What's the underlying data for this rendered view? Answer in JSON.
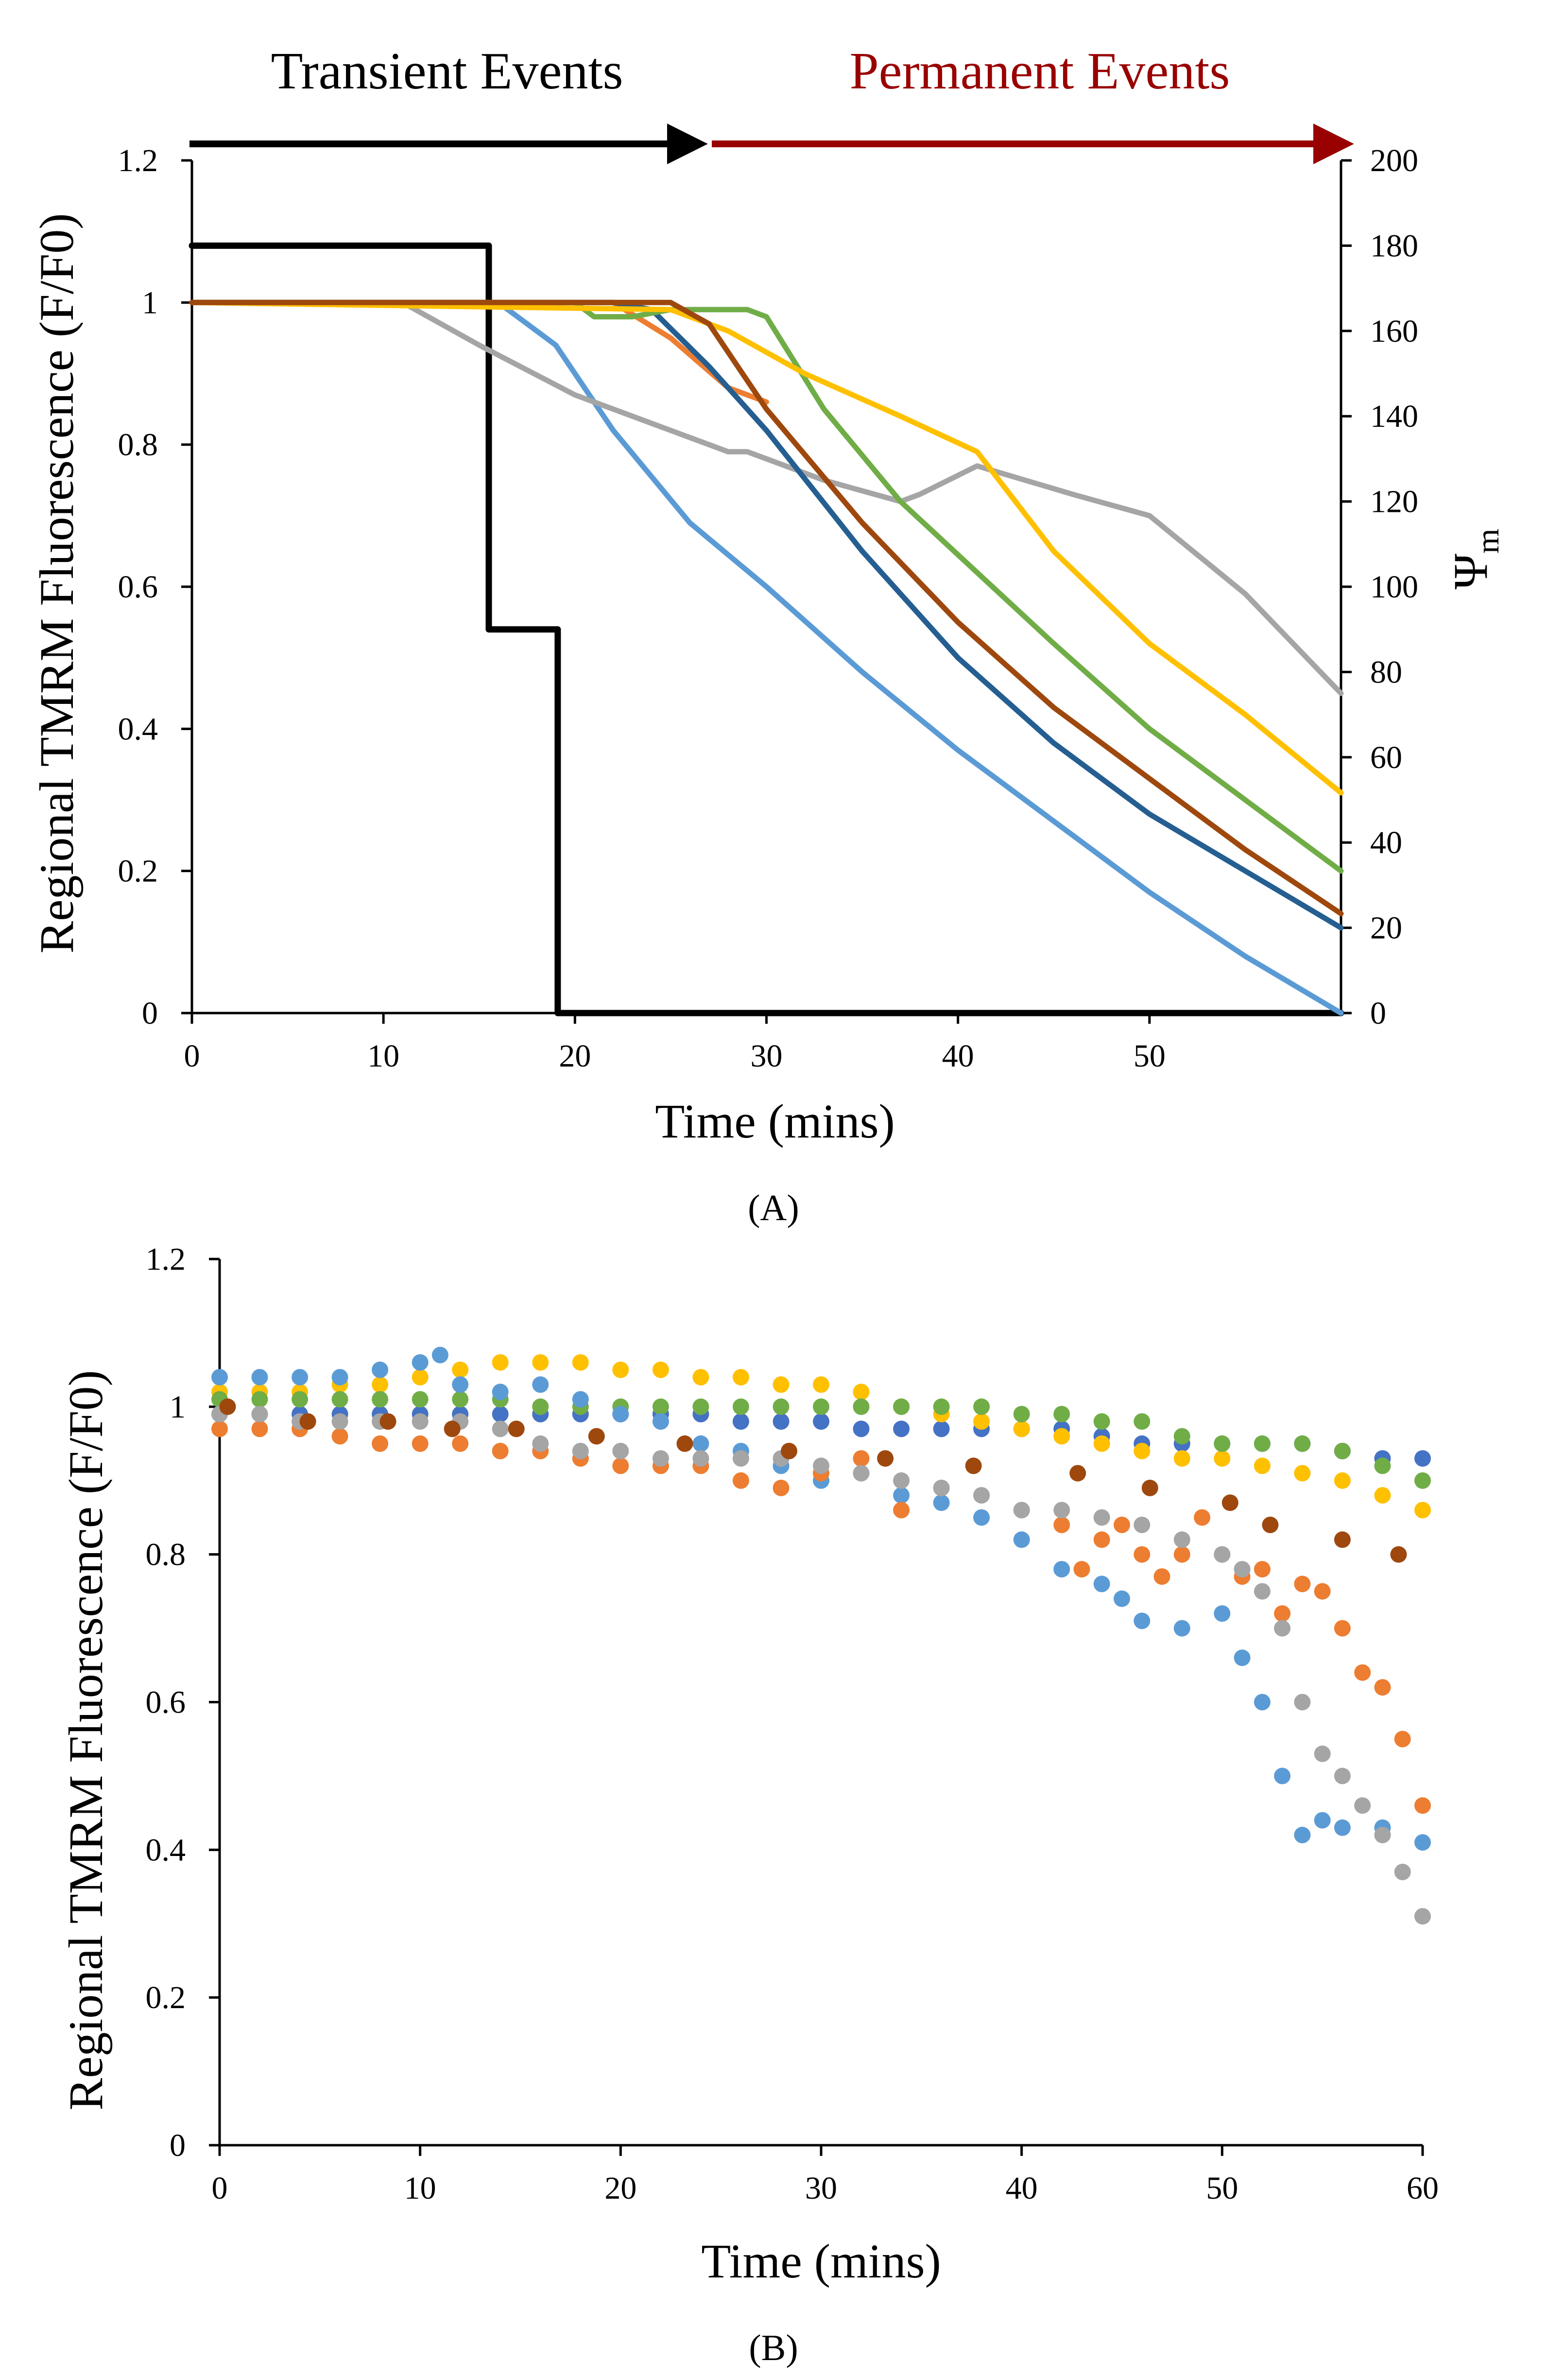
{
  "figure": {
    "panel_a_label": "(A)",
    "panel_b_label": "(B)",
    "events": {
      "transient_label": "Transient Events",
      "permanent_label": "Permanent Events",
      "transient_color": "#000000",
      "permanent_color": "#990000"
    }
  },
  "chart_data": [
    {
      "id": "A",
      "type": "line",
      "title": "",
      "xlabel": "Time (mins)",
      "ylabel": "Regional TMRM Fluorescence (F/F0)",
      "y2label": "Ψ",
      "y2label_subscript": "m",
      "xlim": [
        0,
        60
      ],
      "ylim": [
        0,
        1.2
      ],
      "y2lim": [
        0,
        200
      ],
      "xticks": [
        0,
        10,
        20,
        30,
        40,
        50
      ],
      "yticks": [
        0,
        0.2,
        0.4,
        0.6,
        0.8,
        1,
        1.2
      ],
      "y2ticks": [
        0,
        20,
        40,
        60,
        80,
        100,
        120,
        140,
        160,
        180,
        200
      ],
      "grid": false,
      "series": [
        {
          "name": "step",
          "color": "#000000",
          "axis": "y2",
          "step": true,
          "x": [
            0,
            15.5,
            15.5,
            19.1,
            19.1,
            60
          ],
          "y": [
            180,
            180,
            90,
            90,
            0,
            0
          ]
        },
        {
          "name": "light-blue",
          "color": "#5b9bd5",
          "axis": "y",
          "x": [
            0,
            16,
            19,
            22,
            26,
            30,
            35,
            40,
            45,
            50,
            55,
            60
          ],
          "y": [
            1,
            1,
            0.94,
            0.82,
            0.69,
            0.6,
            0.48,
            0.37,
            0.27,
            0.17,
            0.08,
            0
          ]
        },
        {
          "name": "gray",
          "color": "#a5a5a5",
          "axis": "y",
          "x": [
            0,
            11,
            15,
            20,
            24,
            28,
            29,
            33,
            37,
            38,
            41,
            46,
            50,
            55,
            60
          ],
          "y": [
            1,
            1,
            0.94,
            0.87,
            0.83,
            0.79,
            0.79,
            0.75,
            0.72,
            0.73,
            0.77,
            0.73,
            0.7,
            0.59,
            0.45
          ]
        },
        {
          "name": "orange",
          "color": "#ed7d31",
          "axis": "y",
          "x": [
            0,
            22,
            25,
            28,
            30
          ],
          "y": [
            1,
            1,
            0.95,
            0.88,
            0.86
          ]
        },
        {
          "name": "dark-blue",
          "color": "#255e91",
          "axis": "y",
          "x": [
            0,
            22,
            24,
            27,
            30,
            35,
            40,
            45,
            50,
            55,
            60
          ],
          "y": [
            1,
            1,
            0.99,
            0.91,
            0.82,
            0.65,
            0.5,
            0.38,
            0.28,
            0.2,
            0.12
          ]
        },
        {
          "name": "green",
          "color": "#70ad47",
          "axis": "y",
          "x": [
            0,
            20,
            21,
            23,
            25,
            29,
            30,
            33,
            37,
            41,
            45,
            50,
            55,
            60
          ],
          "y": [
            1,
            1,
            0.98,
            0.98,
            0.99,
            0.99,
            0.98,
            0.85,
            0.72,
            0.62,
            0.52,
            0.4,
            0.3,
            0.2
          ]
        },
        {
          "name": "yellow",
          "color": "#ffc000",
          "axis": "y",
          "x": [
            0,
            25,
            28,
            32,
            37,
            41,
            45,
            50,
            55,
            60
          ],
          "y": [
            1,
            0.99,
            0.96,
            0.9,
            0.84,
            0.79,
            0.65,
            0.52,
            0.42,
            0.31
          ]
        },
        {
          "name": "brown",
          "color": "#9e480e",
          "axis": "y",
          "x": [
            0,
            25,
            27,
            30,
            35,
            40,
            45,
            50,
            55,
            60
          ],
          "y": [
            1,
            1,
            0.97,
            0.85,
            0.69,
            0.55,
            0.43,
            0.33,
            0.23,
            0.14
          ]
        }
      ]
    },
    {
      "id": "B",
      "type": "scatter",
      "title": "",
      "xlabel": "Time (mins)",
      "ylabel": "Regional TMRM Fluorescence (F/F0)",
      "xlim": [
        0,
        60
      ],
      "ylim": [
        0,
        1.2
      ],
      "xticks": [
        0,
        10,
        20,
        30,
        40,
        50,
        60
      ],
      "yticks": [
        0,
        0.2,
        0.4,
        0.6,
        0.8,
        1,
        1.2
      ],
      "grid": false,
      "series": [
        {
          "name": "dark-blue",
          "color": "#4472c4",
          "x": [
            0,
            2,
            4,
            6,
            8,
            10,
            12,
            14,
            16,
            18,
            20,
            22,
            24,
            26,
            28,
            30,
            32,
            34,
            36,
            38,
            40,
            42,
            44,
            46,
            48,
            50,
            52,
            54,
            56,
            58,
            60
          ],
          "y": [
            0.99,
            0.99,
            0.99,
            0.99,
            0.99,
            0.99,
            0.99,
            0.99,
            0.99,
            0.99,
            0.99,
            0.99,
            0.99,
            0.98,
            0.98,
            0.98,
            0.97,
            0.97,
            0.97,
            0.97,
            0.97,
            0.97,
            0.96,
            0.95,
            0.95,
            0.95,
            0.95,
            0.95,
            0.94,
            0.93,
            0.93
          ]
        },
        {
          "name": "yellow",
          "color": "#ffc000",
          "x": [
            0,
            2,
            4,
            6,
            8,
            10,
            12,
            14,
            16,
            18,
            20,
            22,
            24,
            26,
            28,
            30,
            32,
            34,
            36,
            38,
            40,
            42,
            44,
            46,
            48,
            50,
            52,
            54,
            56,
            58,
            60
          ],
          "y": [
            1.02,
            1.02,
            1.02,
            1.03,
            1.03,
            1.04,
            1.05,
            1.06,
            1.06,
            1.06,
            1.05,
            1.05,
            1.04,
            1.04,
            1.03,
            1.03,
            1.02,
            1.0,
            0.99,
            0.98,
            0.97,
            0.96,
            0.95,
            0.94,
            0.93,
            0.93,
            0.92,
            0.91,
            0.9,
            0.88,
            0.86
          ]
        },
        {
          "name": "green",
          "color": "#70ad47",
          "x": [
            0,
            2,
            4,
            6,
            8,
            10,
            12,
            14,
            16,
            18,
            20,
            22,
            24,
            26,
            28,
            30,
            32,
            34,
            36,
            38,
            40,
            42,
            44,
            46,
            48,
            50,
            52,
            54,
            56,
            58,
            60
          ],
          "y": [
            1.01,
            1.01,
            1.01,
            1.01,
            1.01,
            1.01,
            1.01,
            1.01,
            1.0,
            1.0,
            1.0,
            1.0,
            1.0,
            1.0,
            1.0,
            1.0,
            1.0,
            1.0,
            1.0,
            1.0,
            0.99,
            0.99,
            0.98,
            0.98,
            0.96,
            0.95,
            0.95,
            0.95,
            0.94,
            0.92,
            0.9
          ]
        },
        {
          "name": "light-blue",
          "color": "#5b9bd5",
          "x": [
            0,
            2,
            4,
            6,
            8,
            10,
            11,
            12,
            14,
            16,
            18,
            20,
            22,
            24,
            26,
            28,
            30,
            32,
            34,
            36,
            38,
            40,
            42,
            44,
            45,
            46,
            48,
            50,
            51,
            52,
            53,
            54,
            55,
            56,
            58,
            60
          ],
          "y": [
            1.04,
            1.04,
            1.04,
            1.04,
            1.05,
            1.06,
            1.07,
            1.03,
            1.02,
            1.03,
            1.01,
            0.99,
            0.98,
            0.95,
            0.94,
            0.92,
            0.9,
            0.91,
            0.88,
            0.87,
            0.85,
            0.82,
            0.78,
            0.76,
            0.74,
            0.71,
            0.7,
            0.72,
            0.66,
            0.6,
            0.5,
            0.42,
            0.44,
            0.43,
            0.43,
            0.41
          ]
        },
        {
          "name": "orange",
          "color": "#ed7d31",
          "x": [
            0,
            2,
            4,
            6,
            8,
            10,
            12,
            14,
            16,
            18,
            20,
            22,
            24,
            26,
            28,
            30,
            32,
            34,
            36,
            38,
            40,
            42,
            43,
            44,
            45,
            46,
            47,
            48,
            49,
            50,
            51,
            52,
            53,
            54,
            55,
            56,
            57,
            58,
            59,
            60
          ],
          "y": [
            0.97,
            0.97,
            0.97,
            0.96,
            0.95,
            0.95,
            0.95,
            0.94,
            0.94,
            0.93,
            0.92,
            0.92,
            0.92,
            0.9,
            0.89,
            0.91,
            0.93,
            0.86,
            0.89,
            0.88,
            0.86,
            0.84,
            0.78,
            0.82,
            0.84,
            0.8,
            0.77,
            0.8,
            0.85,
            0.8,
            0.77,
            0.78,
            0.72,
            0.76,
            0.75,
            0.7,
            0.64,
            0.62,
            0.55,
            0.46
          ]
        },
        {
          "name": "gray",
          "color": "#a5a5a5",
          "x": [
            0,
            2,
            4,
            6,
            8,
            10,
            12,
            14,
            16,
            18,
            20,
            22,
            24,
            26,
            28,
            30,
            32,
            34,
            36,
            38,
            40,
            42,
            44,
            46,
            48,
            50,
            51,
            52,
            53,
            54,
            55,
            56,
            57,
            58,
            59,
            60
          ],
          "y": [
            0.99,
            0.99,
            0.98,
            0.98,
            0.98,
            0.98,
            0.98,
            0.97,
            0.95,
            0.94,
            0.94,
            0.93,
            0.93,
            0.93,
            0.93,
            0.92,
            0.91,
            0.9,
            0.89,
            0.88,
            0.86,
            0.86,
            0.85,
            0.84,
            0.82,
            0.8,
            0.78,
            0.75,
            0.7,
            0.6,
            0.53,
            0.5,
            0.46,
            0.42,
            0.37,
            0.31
          ]
        },
        {
          "name": "brown",
          "color": "#9e480e",
          "x": [
            0.4,
            4.4,
            8.4,
            11.6,
            14.8,
            18.8,
            23.2,
            28.4,
            33.2,
            37.6,
            42.8,
            46.4,
            50.4,
            52.4,
            56,
            58.8
          ],
          "y": [
            1.0,
            0.98,
            0.98,
            0.97,
            0.97,
            0.96,
            0.95,
            0.94,
            0.93,
            0.92,
            0.91,
            0.89,
            0.87,
            0.84,
            0.82,
            0.8
          ]
        }
      ]
    }
  ]
}
